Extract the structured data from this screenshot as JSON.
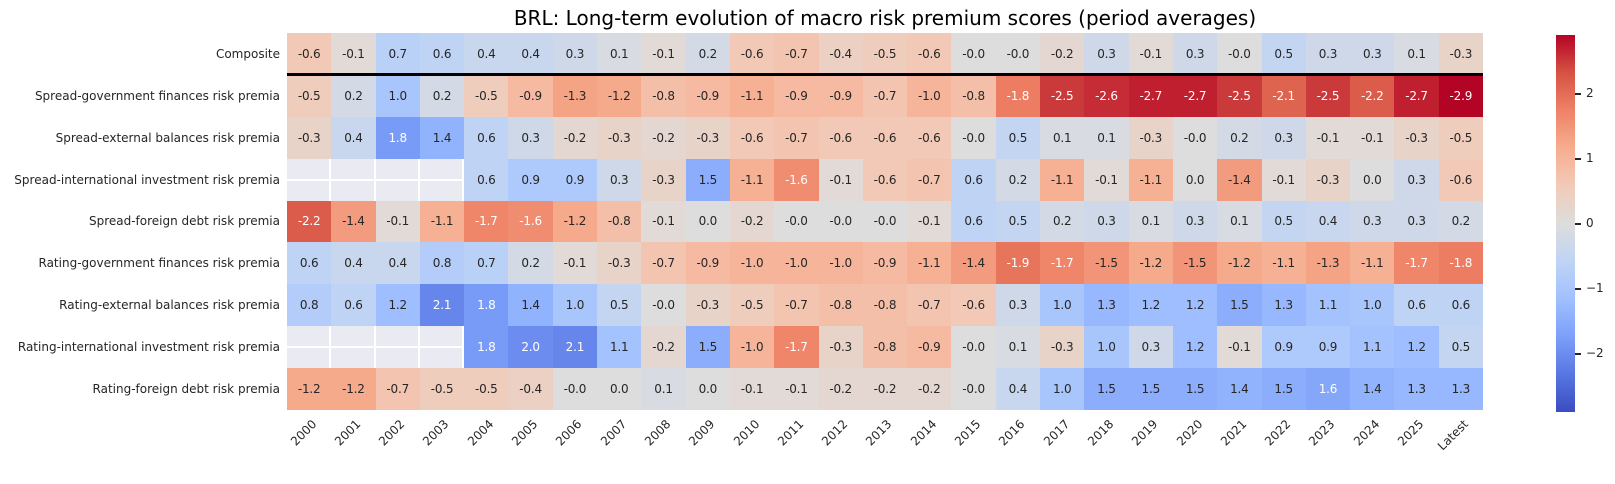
{
  "chart_data": {
    "type": "heatmap",
    "title": "BRL: Long-term evolution of macro risk premium scores (period averages)",
    "columns": [
      "2000",
      "2001",
      "2002",
      "2003",
      "2004",
      "2005",
      "2006",
      "2007",
      "2008",
      "2009",
      "2010",
      "2011",
      "2012",
      "2013",
      "2014",
      "2015",
      "2016",
      "2017",
      "2018",
      "2019",
      "2020",
      "2021",
      "2022",
      "2023",
      "2024",
      "2025",
      "Latest"
    ],
    "rows": [
      {
        "label": "Composite",
        "values": [
          "-0.6",
          "-0.1",
          "0.7",
          "0.6",
          "0.4",
          "0.4",
          "0.3",
          "0.1",
          "-0.1",
          "0.2",
          "-0.6",
          "-0.7",
          "-0.4",
          "-0.5",
          "-0.6",
          "-0.0",
          "-0.0",
          "-0.2",
          "0.3",
          "-0.1",
          "0.3",
          "-0.0",
          "0.5",
          "0.3",
          "0.3",
          "0.1",
          "-0.3"
        ]
      },
      {
        "label": "Spread-government finances risk premia",
        "values": [
          "-0.5",
          "0.2",
          "1.0",
          "0.2",
          "-0.5",
          "-0.9",
          "-1.3",
          "-1.2",
          "-0.8",
          "-0.9",
          "-1.1",
          "-0.9",
          "-0.9",
          "-0.7",
          "-1.0",
          "-0.8",
          "-1.8",
          "-2.5",
          "-2.6",
          "-2.7",
          "-2.7",
          "-2.5",
          "-2.1",
          "-2.5",
          "-2.2",
          "-2.7",
          "-2.9"
        ]
      },
      {
        "label": "Spread-external balances risk premia",
        "values": [
          "-0.3",
          "0.4",
          "1.8",
          "1.4",
          "0.6",
          "0.3",
          "-0.2",
          "-0.3",
          "-0.2",
          "-0.3",
          "-0.6",
          "-0.7",
          "-0.6",
          "-0.6",
          "-0.6",
          "-0.0",
          "0.5",
          "0.1",
          "0.1",
          "-0.3",
          "-0.0",
          "0.2",
          "0.3",
          "-0.1",
          "-0.1",
          "-0.3",
          "-0.5"
        ]
      },
      {
        "label": "Spread-international investment risk premia",
        "values": [
          null,
          null,
          null,
          null,
          "0.6",
          "0.9",
          "0.9",
          "0.3",
          "-0.3",
          "1.5",
          "-1.1",
          "-1.6",
          "-0.1",
          "-0.6",
          "-0.7",
          "0.6",
          "0.2",
          "-1.1",
          "-0.1",
          "-1.1",
          "0.0",
          "-1.4",
          "-0.1",
          "-0.3",
          "0.0",
          "0.3",
          "-0.6"
        ]
      },
      {
        "label": "Spread-foreign debt risk premia",
        "values": [
          "-2.2",
          "-1.4",
          "-0.1",
          "-1.1",
          "-1.7",
          "-1.6",
          "-1.2",
          "-0.8",
          "-0.1",
          "0.0",
          "-0.2",
          "-0.0",
          "-0.0",
          "-0.0",
          "-0.1",
          "0.6",
          "0.5",
          "0.2",
          "0.3",
          "0.1",
          "0.3",
          "0.1",
          "0.5",
          "0.4",
          "0.3",
          "0.3",
          "0.2"
        ]
      },
      {
        "label": "Rating-government finances risk premia",
        "values": [
          "0.6",
          "0.4",
          "0.4",
          "0.8",
          "0.7",
          "0.2",
          "-0.1",
          "-0.3",
          "-0.7",
          "-0.9",
          "-1.0",
          "-1.0",
          "-1.0",
          "-0.9",
          "-1.1",
          "-1.4",
          "-1.9",
          "-1.7",
          "-1.5",
          "-1.2",
          "-1.5",
          "-1.2",
          "-1.1",
          "-1.3",
          "-1.1",
          "-1.7",
          "-1.8"
        ]
      },
      {
        "label": "Rating-external balances risk premia",
        "values": [
          "0.8",
          "0.6",
          "1.2",
          "2.1",
          "1.8",
          "1.4",
          "1.0",
          "0.5",
          "-0.0",
          "-0.3",
          "-0.5",
          "-0.7",
          "-0.8",
          "-0.8",
          "-0.7",
          "-0.6",
          "0.3",
          "1.0",
          "1.3",
          "1.2",
          "1.2",
          "1.5",
          "1.3",
          "1.1",
          "1.0",
          "0.6",
          "0.6"
        ]
      },
      {
        "label": "Rating-international investment risk premia",
        "values": [
          null,
          null,
          null,
          null,
          "1.8",
          "2.0",
          "2.1",
          "1.1",
          "-0.2",
          "1.5",
          "-1.0",
          "-1.7",
          "-0.3",
          "-0.8",
          "-0.9",
          "-0.0",
          "0.1",
          "-0.3",
          "1.0",
          "0.3",
          "1.2",
          "-0.1",
          "0.9",
          "0.9",
          "1.1",
          "1.2",
          "0.5"
        ]
      },
      {
        "label": "Rating-foreign debt risk premia",
        "values": [
          "-1.2",
          "-1.2",
          "-0.7",
          "-0.5",
          "-0.5",
          "-0.4",
          "-0.0",
          "0.0",
          "0.1",
          "0.0",
          "-0.1",
          "-0.1",
          "-0.2",
          "-0.2",
          "-0.2",
          "-0.0",
          "0.4",
          "1.0",
          "1.5",
          "1.5",
          "1.5",
          "1.4",
          "1.5",
          "1.6",
          "1.4",
          "1.3",
          "1.3"
        ]
      }
    ],
    "separator_after_row_index": 0,
    "colorbar": {
      "vmin": -2.9,
      "vmax": 2.9,
      "tick_values": [
        2,
        1,
        0,
        -1,
        -2
      ],
      "tick_labels": [
        "2",
        "1",
        "0",
        "−1",
        "−2"
      ]
    },
    "colormap": {
      "name": "coolwarm_r",
      "coolwarm_stops": [
        "#3b4cc0",
        "#5876e2",
        "#7c9ff9",
        "#a0c0ff",
        "#c0d4f5",
        "#dddddd",
        "#f2cab7",
        "#f7ad8f",
        "#ee8266",
        "#d65243",
        "#b40426"
      ]
    },
    "nan_color": "#eaeaf2",
    "annotation_colors": {
      "dark": "#262626",
      "light": "#ffffff",
      "white_text_abs_threshold": 1.55
    }
  }
}
